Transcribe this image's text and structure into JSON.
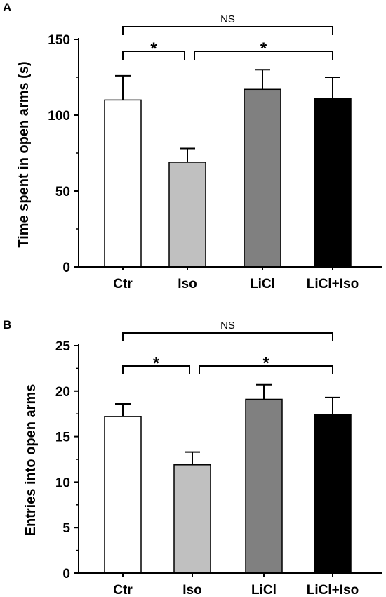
{
  "chart_data": [
    {
      "panel": "A",
      "type": "bar",
      "categories": [
        "Ctr",
        "Iso",
        "LiCl",
        "LiCl+Iso"
      ],
      "values": [
        110,
        69,
        117,
        111
      ],
      "errors": [
        16,
        9,
        13,
        14
      ],
      "colors": [
        "#ffffff",
        "#c0c0c0",
        "#808080",
        "#000000"
      ],
      "ylabel": "Time spent in open arms (s)",
      "ylim": [
        0,
        150
      ],
      "yticks": [
        "0",
        "50",
        "100",
        "150"
      ],
      "comparisons": [
        {
          "from": 0,
          "to": 3,
          "label": "NS"
        },
        {
          "from": 0,
          "to": 1,
          "label": "*"
        },
        {
          "from": 1,
          "to": 3,
          "label": "*"
        }
      ]
    },
    {
      "panel": "B",
      "type": "bar",
      "categories": [
        "Ctr",
        "Iso",
        "LiCl",
        "LiCl+Iso"
      ],
      "values": [
        17.2,
        11.9,
        19.1,
        17.4
      ],
      "errors": [
        1.4,
        1.4,
        1.6,
        1.9
      ],
      "colors": [
        "#ffffff",
        "#c0c0c0",
        "#808080",
        "#000000"
      ],
      "ylabel": "Entries into open arms",
      "ylim": [
        0,
        25
      ],
      "yticks": [
        "0",
        "5",
        "10",
        "15",
        "20",
        "25"
      ],
      "comparisons": [
        {
          "from": 0,
          "to": 3,
          "label": "NS"
        },
        {
          "from": 0,
          "to": 1,
          "label": "*"
        },
        {
          "from": 1,
          "to": 3,
          "label": "*"
        }
      ]
    }
  ]
}
